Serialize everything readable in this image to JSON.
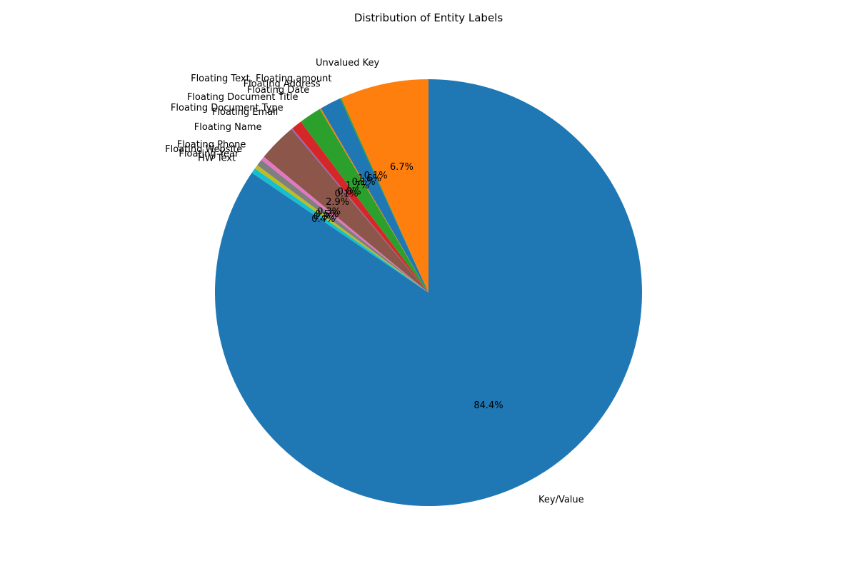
{
  "chart_data": {
    "type": "pie",
    "title": "Distribution of Entity Labels",
    "start_angle_deg": 90,
    "direction": "counterclockwise",
    "autopct_format": "{:.1f}%",
    "slices": [
      {
        "label": "Unvalued Key",
        "value": 6.7,
        "pct_text": "6.7%",
        "color": "#ff7f0e"
      },
      {
        "label": "Floating Text, Floating amount",
        "value": 0.1,
        "pct_text": "0.1%",
        "color": "#2ca02c"
      },
      {
        "label": "Floating Address",
        "value": 1.6,
        "pct_text": "1.6%",
        "color": "#1f77b4"
      },
      {
        "label": "Floating Date",
        "value": 0.1,
        "pct_text": "0.1%",
        "color": "#ff7f0e"
      },
      {
        "label": "Floating Document Title",
        "value": 1.7,
        "pct_text": "1.7%",
        "color": "#2ca02c"
      },
      {
        "label": "Floating Document Type",
        "value": 0.8,
        "pct_text": "0.8%",
        "color": "#d62728"
      },
      {
        "label": "Floating Email",
        "value": 0.1,
        "pct_text": "0.1%",
        "color": "#9467bd"
      },
      {
        "label": "Floating Name",
        "value": 2.9,
        "pct_text": "2.9%",
        "color": "#8c564b"
      },
      {
        "label": "Floating Phone",
        "value": 0.3,
        "pct_text": "0.3%",
        "color": "#e377c2"
      },
      {
        "label": "Floating Website",
        "value": 0.5,
        "pct_text": "0.5%",
        "color": "#7f7f7f"
      },
      {
        "label": "Floating Year",
        "value": 0.3,
        "pct_text": "0.3%",
        "color": "#bcbd22"
      },
      {
        "label": "HW Text",
        "value": 0.4,
        "pct_text": "0.4%",
        "color": "#17becf"
      },
      {
        "label": "Key/Value",
        "value": 84.4,
        "pct_text": "84.4%",
        "color": "#1f77b4"
      }
    ]
  }
}
